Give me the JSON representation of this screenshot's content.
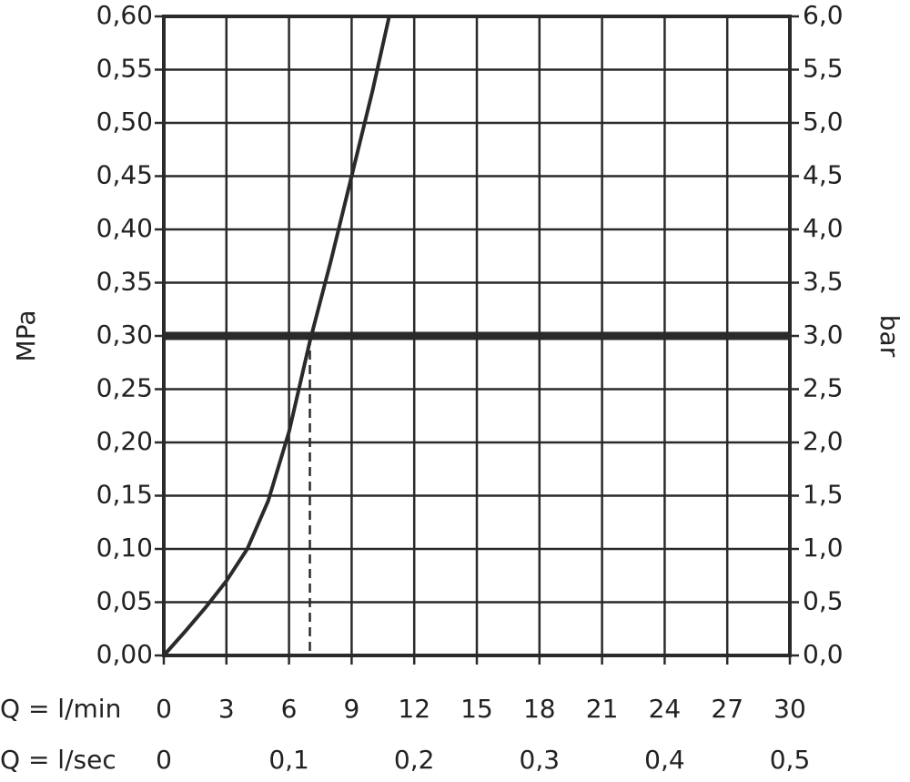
{
  "chart_data": {
    "type": "line",
    "y_label": "MPa",
    "y2_label": "bar",
    "x_label": "Q = l/min",
    "x2_label": "Q = l/sec",
    "color": "#2a2a2a",
    "x": [
      0,
      1,
      2,
      3,
      4,
      5,
      6,
      7,
      8,
      9,
      10,
      10.8
    ],
    "values": [
      0,
      0.022,
      0.045,
      0.07,
      0.1,
      0.145,
      0.21,
      0.295,
      0.37,
      0.45,
      0.53,
      0.6
    ],
    "xlim": [
      0,
      30
    ],
    "xticks": [
      0,
      3,
      6,
      9,
      12,
      15,
      18,
      21,
      24,
      27,
      30
    ],
    "x2lim": [
      0,
      0.5
    ],
    "x2ticks": [
      0,
      {
        "value": 0.1,
        "label": "0,1"
      },
      {
        "value": 0.2,
        "label": "0,2"
      },
      {
        "value": 0.3,
        "label": "0,3"
      },
      {
        "value": 0.4,
        "label": "0,4"
      },
      {
        "value": 0.5,
        "label": "0,5"
      }
    ],
    "ylim": [
      0,
      0.6
    ],
    "yticks": [
      {
        "value": 0,
        "label": "0,00"
      },
      {
        "value": 0.05,
        "label": "0,05"
      },
      {
        "value": 0.1,
        "label": "0,10"
      },
      {
        "value": 0.15,
        "label": "0,15"
      },
      {
        "value": 0.2,
        "label": "0,20"
      },
      {
        "value": 0.25,
        "label": "0,25"
      },
      {
        "value": 0.3,
        "label": "0,30"
      },
      {
        "value": 0.35,
        "label": "0,35"
      },
      {
        "value": 0.4,
        "label": "0,40"
      },
      {
        "value": 0.45,
        "label": "0,45"
      },
      {
        "value": 0.5,
        "label": "0,50"
      },
      {
        "value": 0.55,
        "label": "0,55"
      },
      {
        "value": 0.6,
        "label": "0,60"
      }
    ],
    "y2lim": [
      0,
      6
    ],
    "y2ticks": [
      {
        "value": 0,
        "label": "0,0"
      },
      {
        "value": 0.5,
        "label": "0,5"
      },
      {
        "value": 1,
        "label": "1,0"
      },
      {
        "value": 1.5,
        "label": "1,5"
      },
      {
        "value": 2,
        "label": "2,0"
      },
      {
        "value": 2.5,
        "label": "2,5"
      },
      {
        "value": 3,
        "label": "3,0"
      },
      {
        "value": 3.5,
        "label": "3,5"
      },
      {
        "value": 4,
        "label": "4,0"
      },
      {
        "value": 4.5,
        "label": "4,5"
      },
      {
        "value": 5,
        "label": "5,0"
      },
      {
        "value": 5.5,
        "label": "5,5"
      },
      {
        "value": 6,
        "label": "6,0"
      }
    ],
    "reference": {
      "y": 0.3,
      "x": 7
    },
    "grid": true
  }
}
